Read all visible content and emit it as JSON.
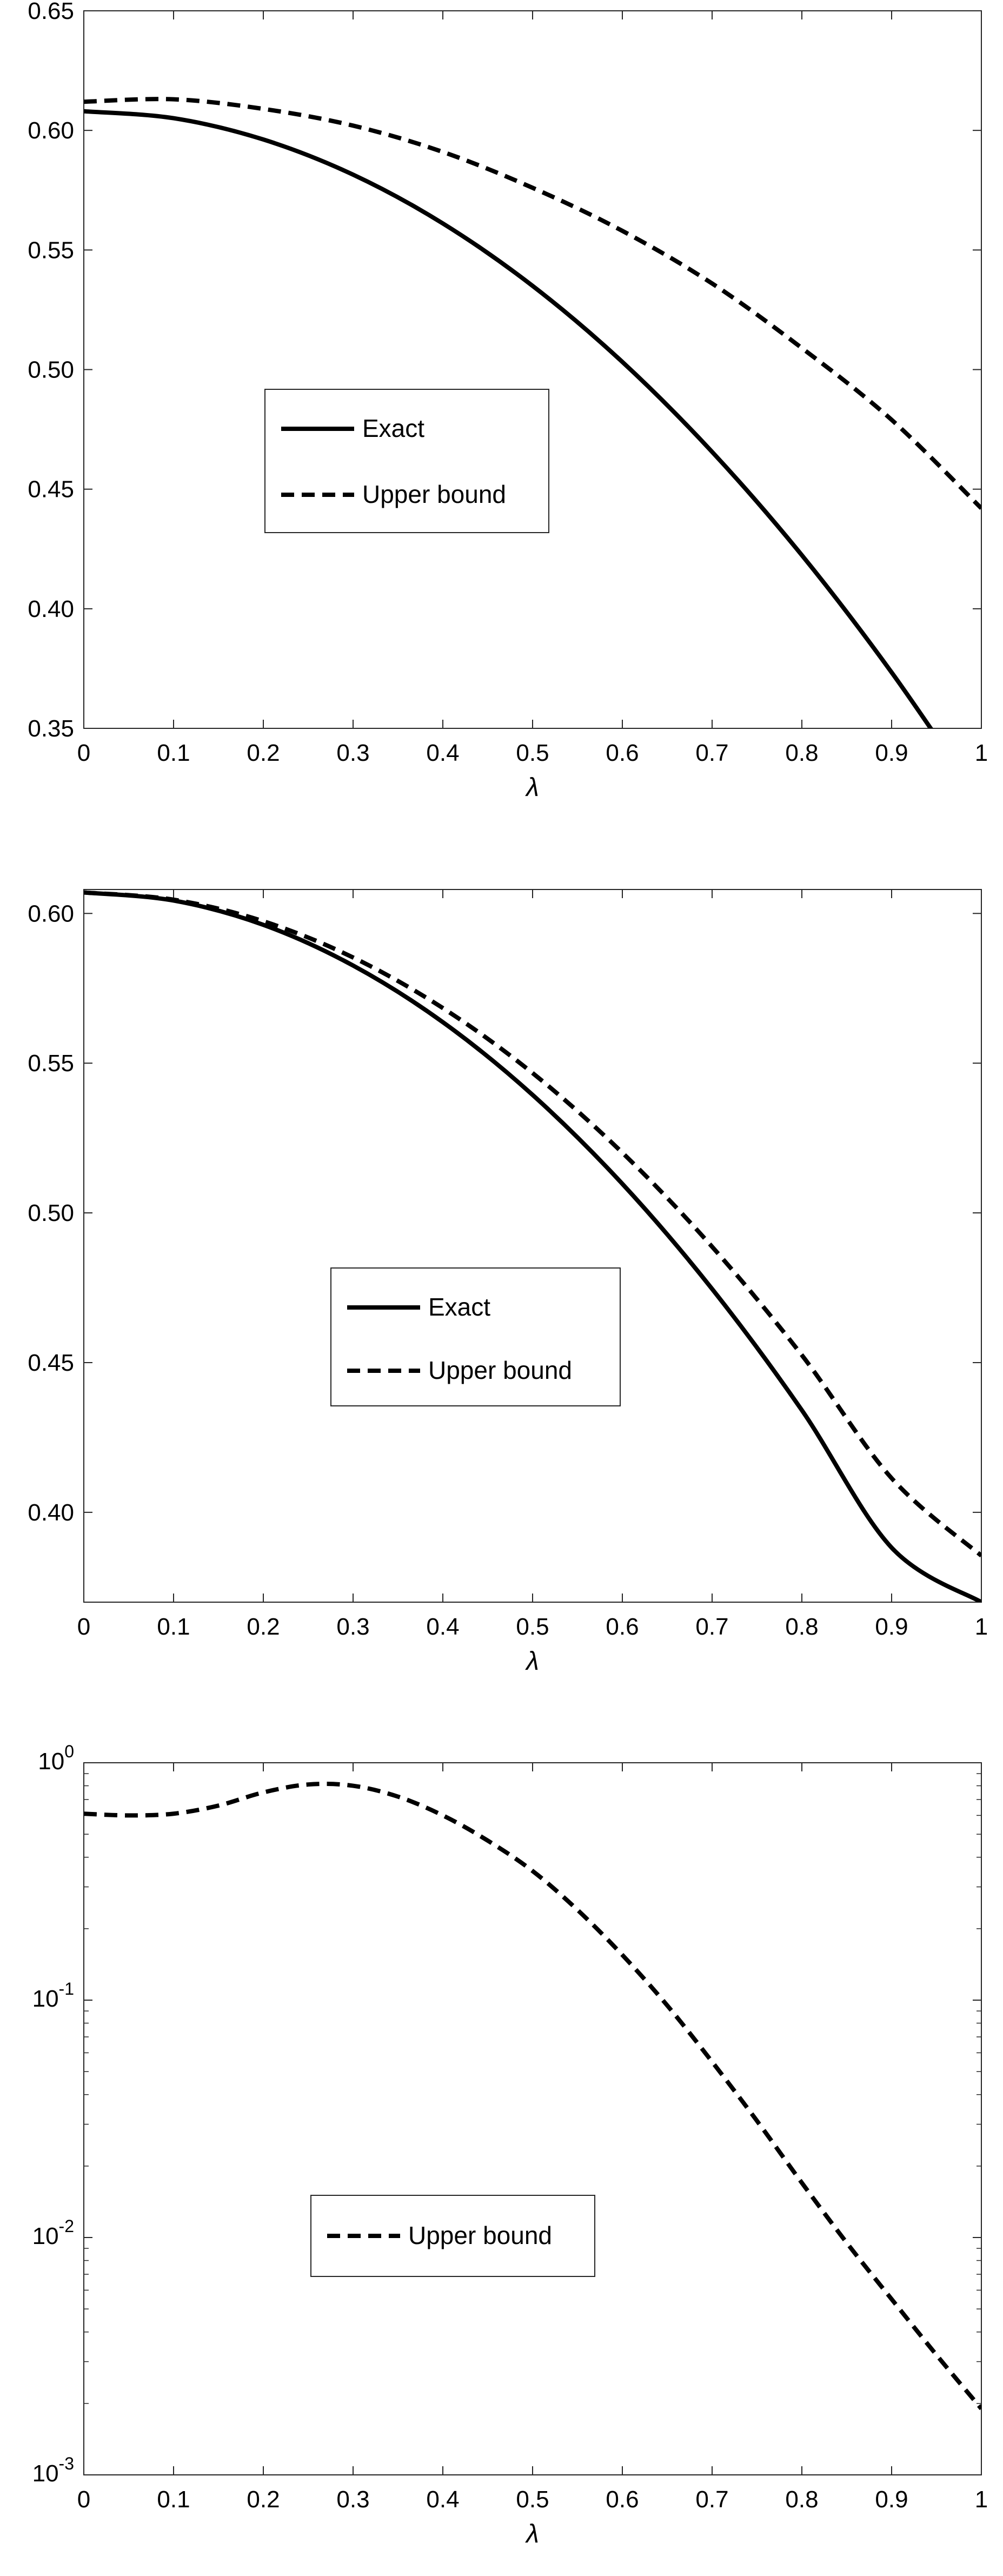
{
  "chart_data": [
    {
      "type": "line",
      "title": "",
      "xlabel": "λ",
      "ylabel": "",
      "xlim": [
        0,
        1
      ],
      "ylim": [
        0.35,
        0.65
      ],
      "yscale": "linear",
      "xticks": [
        "0",
        "0.1",
        "0.2",
        "0.3",
        "0.4",
        "0.5",
        "0.6",
        "0.7",
        "0.8",
        "0.9",
        "1"
      ],
      "yticks": [
        "0.35",
        "0.40",
        "0.45",
        "0.50",
        "0.55",
        "0.60",
        "0.65"
      ],
      "grid": false,
      "legend_position": "center-left",
      "x": [
        0,
        0.1,
        0.2,
        0.3,
        0.4,
        0.5,
        0.6,
        0.7,
        0.8,
        0.9,
        1.0
      ],
      "series": [
        {
          "name": "Exact",
          "style": "solid",
          "values": [
            0.608,
            0.6051,
            0.5962,
            0.5815,
            0.5611,
            0.535,
            0.5032,
            0.4656,
            0.4224,
            0.3734,
            0.3188
          ]
        },
        {
          "name": "Upper bound",
          "style": "dashed",
          "values": [
            0.612,
            0.613,
            0.609,
            0.602,
            0.591,
            0.576,
            0.558,
            0.536,
            0.509,
            0.479,
            0.442
          ]
        }
      ]
    },
    {
      "type": "line",
      "title": "",
      "xlabel": "λ",
      "ylabel": "",
      "xlim": [
        0,
        1
      ],
      "ylim": [
        0.37,
        0.608
      ],
      "yscale": "linear",
      "xticks": [
        "0",
        "0.1",
        "0.2",
        "0.3",
        "0.4",
        "0.5",
        "0.6",
        "0.7",
        "0.8",
        "0.9",
        "1"
      ],
      "yticks": [
        "0.40",
        "0.45",
        "0.50",
        "0.55",
        "0.60"
      ],
      "grid": false,
      "legend_position": "center-left",
      "x": [
        0,
        0.1,
        0.2,
        0.3,
        0.4,
        0.5,
        0.6,
        0.7,
        0.8,
        0.9,
        1.0
      ],
      "series": [
        {
          "name": "Exact",
          "style": "solid",
          "values": [
            0.607,
            0.6043,
            0.5962,
            0.5826,
            0.5637,
            0.5394,
            0.5097,
            0.4746,
            0.4341,
            0.3882,
            0.37
          ]
        },
        {
          "name": "Upper bound",
          "style": "dashed",
          "values": [
            0.607,
            0.6046,
            0.5974,
            0.5853,
            0.5684,
            0.5467,
            0.5201,
            0.4887,
            0.4525,
            0.4114,
            0.3855
          ]
        }
      ]
    },
    {
      "type": "line",
      "title": "",
      "xlabel": "λ",
      "ylabel": "",
      "xlim": [
        0,
        1
      ],
      "ylim": [
        0.001,
        1
      ],
      "yscale": "log",
      "xticks": [
        "0",
        "0.1",
        "0.2",
        "0.3",
        "0.4",
        "0.5",
        "0.6",
        "0.7",
        "0.8",
        "0.9",
        "1"
      ],
      "yticks": [
        {
          "base": "10",
          "exp": "0"
        },
        {
          "base": "10",
          "exp": "-1"
        },
        {
          "base": "10",
          "exp": "-2"
        },
        {
          "base": "10",
          "exp": "-3"
        }
      ],
      "grid": false,
      "legend_position": "center-left",
      "x": [
        0,
        0.05,
        0.1,
        0.15,
        0.2,
        0.25,
        0.3,
        0.35,
        0.4,
        0.45,
        0.5,
        0.55,
        0.6,
        0.65,
        0.7,
        0.75,
        0.8,
        0.85,
        0.9,
        0.95,
        1.0
      ],
      "series": [
        {
          "name": "Upper bound",
          "style": "dashed",
          "values": [
            0.61,
            0.6,
            0.61,
            0.66,
            0.75,
            0.81,
            0.8,
            0.72,
            0.6,
            0.47,
            0.35,
            0.24,
            0.155,
            0.095,
            0.055,
            0.031,
            0.017,
            0.0095,
            0.0055,
            0.0032,
            0.0019
          ]
        }
      ]
    }
  ]
}
